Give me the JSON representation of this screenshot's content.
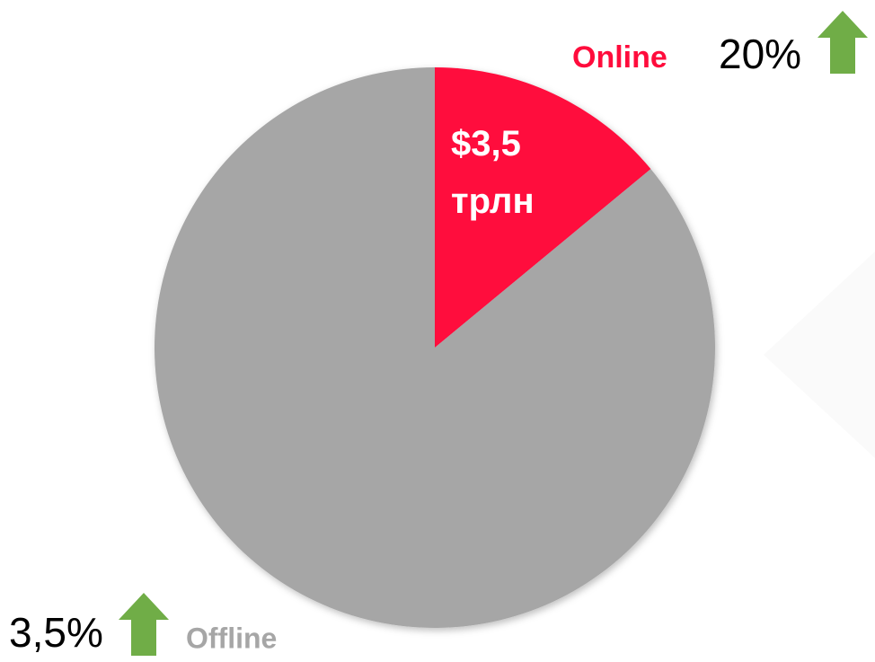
{
  "chart_data": {
    "type": "pie",
    "categories": [
      "Online",
      "Offline"
    ],
    "values": [
      3.5,
      21.5
    ],
    "value_labels": [
      "$3,5 трлн",
      null
    ],
    "colors": [
      "#ff0c3c",
      "#a6a6a6"
    ],
    "growth_labels": [
      "20%",
      "3,5%"
    ]
  }
}
